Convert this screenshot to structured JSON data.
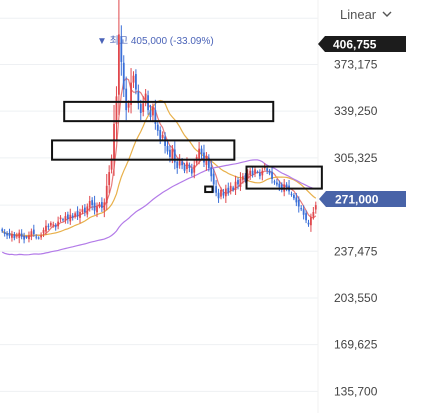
{
  "scale_selector": {
    "label": "Linear",
    "icon": "chevron-down-icon"
  },
  "chart_data": {
    "type": "candlestick",
    "ylim": [
      120000,
      420000
    ],
    "yticks": [
      373175,
      339250,
      305325,
      271000,
      237475,
      203550,
      169625,
      135700
    ],
    "ytick_labels": [
      "373,175",
      "339,250",
      "305,325",
      "271,000",
      "237,475",
      "203,550",
      "169,625",
      "135,700"
    ],
    "top_marker": {
      "value": 406755,
      "label": "406,755"
    },
    "current_price": {
      "value": 271000,
      "label": "271,000"
    },
    "max_annotation": {
      "arrow": "▼",
      "prefix": "최고",
      "value": 405000,
      "text": "405,000 (-33.09%)"
    },
    "close_series": [
      252000,
      250000,
      249000,
      248500,
      250000,
      247000,
      249000,
      251000,
      248000,
      246000,
      247500,
      249000,
      252000,
      250000,
      248000,
      247000,
      249000,
      253000,
      256000,
      255000,
      258000,
      257000,
      255000,
      259000,
      262000,
      260000,
      263000,
      261000,
      264000,
      262000,
      265000,
      263000,
      266000,
      268000,
      266000,
      270000,
      274000,
      271000,
      267000,
      270000,
      272000,
      269000,
      273000,
      285000,
      295000,
      305000,
      330000,
      350000,
      395000,
      375000,
      355000,
      340000,
      345000,
      360000,
      365000,
      355000,
      345000,
      338000,
      345000,
      352000,
      340000,
      335000,
      342000,
      330000,
      325000,
      318000,
      322000,
      314000,
      310000,
      306000,
      312000,
      302000,
      298000,
      304000,
      300000,
      296000,
      302000,
      298000,
      294000,
      300000,
      306000,
      312000,
      308000,
      302000,
      306000,
      298000,
      292000,
      286000,
      280000,
      276000,
      282000,
      278000,
      283000,
      280000,
      285000,
      282000,
      288000,
      286000,
      290000,
      292000,
      289000,
      294000,
      296000,
      293000,
      297000,
      295000,
      292000,
      296000,
      299000,
      296000,
      294000,
      290000,
      288000,
      286000,
      284000,
      282000,
      286000,
      284000,
      281000,
      279000,
      276000,
      273000,
      270000,
      268000,
      264000,
      260000,
      257000,
      262000,
      266000,
      271000
    ],
    "ma_series": [
      {
        "color": "#e87a7a",
        "window": 5
      },
      {
        "color": "#e8b04a",
        "window": 20
      },
      {
        "color": "#b37be8",
        "window": 60
      }
    ],
    "colors": {
      "up": "#e0474c",
      "down": "#3a6fd8",
      "current_bg": "#4863a8",
      "top_bg": "#1c1c1c",
      "grid": "#eef0f3"
    },
    "highlight_boxes": [
      {
        "x0": 26,
        "x1": 111,
        "y0": 346000,
        "y1": 332000
      },
      {
        "x0": 21,
        "x1": 95,
        "y0": 318000,
        "y1": 304000
      },
      {
        "x0": 84,
        "x1": 86,
        "y0": 284500,
        "y1": 280500
      },
      {
        "x0": 101,
        "x1": 131,
        "y0": 299000,
        "y1": 283000
      }
    ]
  }
}
